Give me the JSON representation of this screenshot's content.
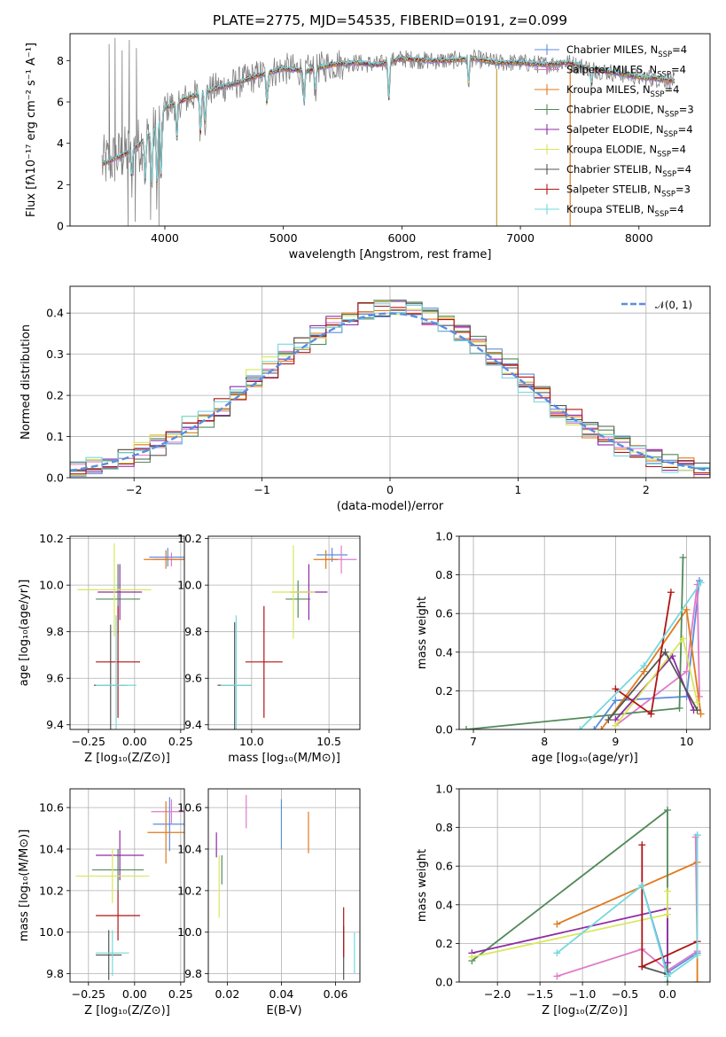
{
  "colors": {
    "chabrier_miles": "#5b8ee0",
    "salpeter_miles": "#e07bc8",
    "kroupa_miles": "#e07a1e",
    "chabrier_elodie": "#538a5a",
    "salpeter_elodie": "#8e2ca6",
    "kroupa_elodie": "#d8e85a",
    "chabrier_stelib": "#555555",
    "salpeter_stelib": "#b01515",
    "kroupa_stelib": "#76d8dc",
    "data": "#808080",
    "normal": "#5b8ee0",
    "grid": "#b0b0b0"
  },
  "chart_data": [
    {
      "id": "spectrum",
      "type": "line",
      "title": "PLATE=2775, MJD=54535, FIBERID=0191, z=0.099",
      "xlabel": "wavelength [Angstrom, rest frame]",
      "ylabel": "Flux [fλ10⁻¹⁷ erg cm⁻² s⁻¹ A⁻¹]",
      "xlim": [
        3200,
        8600
      ],
      "ylim": [
        0,
        9.3
      ],
      "xticks": [
        4000,
        5000,
        6000,
        7000,
        8000
      ],
      "yticks": [
        0,
        2,
        4,
        6,
        8
      ],
      "grid": false,
      "legend_position": "top-right",
      "legend": [
        {
          "label": "Chabrier MILES, N",
          "sub": "SSP",
          "suffix": "=4",
          "color": "#5b8ee0"
        },
        {
          "label": "Salpeter MILES, N",
          "sub": "SSP",
          "suffix": "=4",
          "color": "#e07bc8"
        },
        {
          "label": "Kroupa MILES, N",
          "sub": "SSP",
          "suffix": "=4",
          "color": "#e07a1e"
        },
        {
          "label": "Chabrier ELODIE, N",
          "sub": "SSP",
          "suffix": "=3",
          "color": "#538a5a"
        },
        {
          "label": "Salpeter ELODIE, N",
          "sub": "SSP",
          "suffix": "=4",
          "color": "#8e2ca6"
        },
        {
          "label": "Kroupa ELODIE, N",
          "sub": "SSP",
          "suffix": "=4",
          "color": "#d8e85a"
        },
        {
          "label": "Chabrier STELIB, N",
          "sub": "SSP",
          "suffix": "=4",
          "color": "#555555"
        },
        {
          "label": "Salpeter STELIB, N",
          "sub": "SSP",
          "suffix": "=3",
          "color": "#b01515"
        },
        {
          "label": "Kroupa STELIB, N",
          "sub": "SSP",
          "suffix": "=4",
          "color": "#76d8dc"
        }
      ],
      "continuum": [
        [
          3470,
          3.0
        ],
        [
          3600,
          3.3
        ],
        [
          3700,
          3.6
        ],
        [
          3800,
          4.0
        ],
        [
          3900,
          4.6
        ],
        [
          4000,
          5.7
        ],
        [
          4200,
          6.2
        ],
        [
          4400,
          6.6
        ],
        [
          4600,
          6.9
        ],
        [
          4800,
          7.3
        ],
        [
          5000,
          7.6
        ],
        [
          5200,
          7.5
        ],
        [
          5400,
          7.8
        ],
        [
          5600,
          7.9
        ],
        [
          5800,
          7.8
        ],
        [
          6000,
          8.1
        ],
        [
          6200,
          8.0
        ],
        [
          6400,
          8.0
        ],
        [
          6600,
          8.1
        ],
        [
          6800,
          7.9
        ],
        [
          7000,
          7.9
        ],
        [
          7200,
          7.8
        ],
        [
          7400,
          7.9
        ],
        [
          7600,
          7.6
        ],
        [
          7800,
          7.4
        ],
        [
          8000,
          7.2
        ],
        [
          8200,
          7.1
        ],
        [
          8300,
          7.0
        ]
      ],
      "absorption_lines": [
        [
          3720,
          1.3
        ],
        [
          3835,
          2.0
        ],
        [
          3890,
          2.6
        ],
        [
          3934,
          3.0
        ],
        [
          3968,
          3.0
        ],
        [
          4101,
          1.8
        ],
        [
          4300,
          2.0
        ],
        [
          4340,
          1.5
        ],
        [
          4861,
          1.5
        ],
        [
          5175,
          1.6
        ],
        [
          5270,
          1.1
        ],
        [
          5890,
          1.8
        ],
        [
          6563,
          1.2
        ],
        [
          7600,
          0.8
        ]
      ],
      "masked_lines": [
        6800,
        7420
      ],
      "data_spikes": [
        [
          3530,
          8.8
        ],
        [
          3580,
          9.1
        ],
        [
          3640,
          8.5
        ],
        [
          3700,
          9.0
        ],
        [
          3760,
          8.6
        ],
        [
          3690,
          0.0
        ],
        [
          3750,
          0.2
        ],
        [
          3880,
          0.3
        ],
        [
          3950,
          0.0
        ]
      ]
    },
    {
      "id": "residual_hist",
      "type": "line",
      "xlabel": "(data-model)/error",
      "ylabel": "Normed distribution",
      "xlim": [
        -2.5,
        2.5
      ],
      "ylim": [
        0,
        0.465
      ],
      "xticks": [
        -2,
        -1,
        0,
        1,
        2
      ],
      "yticks": [
        0.0,
        0.1,
        0.2,
        0.3,
        0.4
      ],
      "grid": true,
      "legend_position": "top-right",
      "legend": [
        {
          "label": "𝒩(0, 1)",
          "color": "#5b8ee0",
          "dashed": true
        }
      ],
      "bin_width": 0.125,
      "curve": "normal pdf, mean 0, sigma 1"
    },
    {
      "id": "age_vs_Z",
      "type": "scatter",
      "xlabel": "Z [log₁₀(Z/Z⊙)]",
      "ylabel": "age  [log₁₀(age/yr)]",
      "xlim": [
        -0.35,
        0.27
      ],
      "ylim": [
        9.38,
        10.21
      ],
      "xticks": [
        -0.25,
        0.0,
        0.25
      ],
      "yticks": [
        9.4,
        9.6,
        9.8,
        10.0,
        10.2
      ],
      "grid": true,
      "points": [
        {
          "series": "chabrier_miles",
          "x": 0.18,
          "y": 10.12,
          "xerr": 0.1,
          "yerr": 0.04
        },
        {
          "series": "salpeter_miles",
          "x": 0.2,
          "y": 10.11,
          "xerr": 0.1,
          "yerr": 0.03
        },
        {
          "series": "kroupa_miles",
          "x": 0.17,
          "y": 10.11,
          "xerr": 0.12,
          "yerr": 0.04
        },
        {
          "series": "chabrier_elodie",
          "x": -0.09,
          "y": 9.94,
          "xerr": 0.12,
          "yerr": 0.15
        },
        {
          "series": "salpeter_elodie",
          "x": -0.08,
          "y": 9.97,
          "xerr": 0.12,
          "yerr": 0.12
        },
        {
          "series": "kroupa_elodie",
          "x": -0.11,
          "y": 9.98,
          "xerr": 0.2,
          "yerr": 0.2
        },
        {
          "series": "chabrier_stelib",
          "x": -0.13,
          "y": 9.57,
          "xerr": 0.09,
          "yerr": 0.26
        },
        {
          "series": "salpeter_stelib",
          "x": -0.09,
          "y": 9.67,
          "xerr": 0.12,
          "yerr": 0.24
        },
        {
          "series": "kroupa_stelib",
          "x": -0.1,
          "y": 9.57,
          "xerr": 0.11,
          "yerr": 0.3
        }
      ]
    },
    {
      "id": "age_vs_mass",
      "type": "scatter",
      "xlabel": "mass [log₁₀(M/M⊙)]",
      "ylabel": "",
      "xlim": [
        9.72,
        10.7
      ],
      "ylim": [
        9.38,
        10.21
      ],
      "xticks": [
        10.0,
        10.5
      ],
      "yticks": [
        9.4,
        9.6,
        9.8,
        10.0,
        10.2
      ],
      "grid": true,
      "points": [
        {
          "series": "chabrier_miles",
          "x": 10.52,
          "y": 10.13,
          "xerr": 0.1,
          "yerr": 0.03
        },
        {
          "series": "salpeter_miles",
          "x": 10.58,
          "y": 10.11,
          "xerr": 0.1,
          "yerr": 0.06
        },
        {
          "series": "kroupa_miles",
          "x": 10.48,
          "y": 10.11,
          "xerr": 0.08,
          "yerr": 0.04
        },
        {
          "series": "chabrier_elodie",
          "x": 10.3,
          "y": 9.94,
          "xerr": 0.08,
          "yerr": 0.08
        },
        {
          "series": "salpeter_elodie",
          "x": 10.37,
          "y": 9.97,
          "xerr": 0.12,
          "yerr": 0.12
        },
        {
          "series": "kroupa_elodie",
          "x": 10.27,
          "y": 9.97,
          "xerr": 0.14,
          "yerr": 0.2
        },
        {
          "series": "chabrier_stelib",
          "x": 9.89,
          "y": 9.57,
          "xerr": 0.11,
          "yerr": 0.27
        },
        {
          "series": "salpeter_stelib",
          "x": 10.08,
          "y": 9.67,
          "xerr": 0.12,
          "yerr": 0.24
        },
        {
          "series": "kroupa_stelib",
          "x": 9.9,
          "y": 9.57,
          "xerr": 0.1,
          "yerr": 0.3
        }
      ]
    },
    {
      "id": "weight_vs_age",
      "type": "line",
      "xlabel": "age  [log₁₀(age/yr)]",
      "ylabel": "mass weight",
      "xlim": [
        6.8,
        10.33
      ],
      "ylim": [
        0,
        1.0
      ],
      "xticks": [
        7,
        8,
        9,
        10
      ],
      "yticks": [
        0.0,
        0.2,
        0.4,
        0.6,
        0.8,
        1.0
      ],
      "grid": true,
      "series": [
        {
          "key": "chabrier_miles",
          "x": [
            8.7,
            9.0,
            10.0,
            10.18
          ],
          "y": [
            0.0,
            0.15,
            0.17,
            0.77
          ]
        },
        {
          "key": "salpeter_miles",
          "x": [
            9.0,
            10.0,
            10.15,
            10.18
          ],
          "y": [
            0.02,
            0.3,
            0.75,
            0.17
          ]
        },
        {
          "key": "kroupa_miles",
          "x": [
            8.8,
            9.4,
            10.0,
            10.2
          ],
          "y": [
            0.0,
            0.3,
            0.62,
            0.08
          ]
        },
        {
          "key": "chabrier_elodie",
          "x": [
            6.9,
            9.9,
            9.95
          ],
          "y": [
            0.0,
            0.11,
            0.89
          ]
        },
        {
          "key": "salpeter_elodie",
          "x": [
            9.0,
            9.8,
            10.1
          ],
          "y": [
            0.05,
            0.38,
            0.1
          ]
        },
        {
          "key": "kroupa_elodie",
          "x": [
            9.0,
            9.95,
            10.15
          ],
          "y": [
            0.02,
            0.47,
            0.14
          ]
        },
        {
          "key": "chabrier_stelib",
          "x": [
            8.9,
            9.7,
            10.15
          ],
          "y": [
            0.05,
            0.4,
            0.1
          ]
        },
        {
          "key": "salpeter_stelib",
          "x": [
            9.0,
            9.5,
            9.78
          ],
          "y": [
            0.21,
            0.08,
            0.71
          ]
        },
        {
          "key": "kroupa_stelib",
          "x": [
            8.5,
            9.4,
            10.2
          ],
          "y": [
            0.0,
            0.33,
            0.76
          ]
        }
      ]
    },
    {
      "id": "mass_vs_Z",
      "type": "scatter",
      "xlabel": "Z [log₁₀(Z/Z⊙)]",
      "ylabel": "mass [log₁₀(M/M⊙)]",
      "xlim": [
        -0.35,
        0.27
      ],
      "ylim": [
        9.76,
        10.69
      ],
      "xticks": [
        -0.25,
        0.0,
        0.25
      ],
      "yticks": [
        9.8,
        10.0,
        10.2,
        10.4,
        10.6
      ],
      "grid": true,
      "points": [
        {
          "series": "chabrier_miles",
          "x": 0.19,
          "y": 10.52,
          "xerr": 0.09,
          "yerr": 0.13
        },
        {
          "series": "salpeter_miles",
          "x": 0.2,
          "y": 10.58,
          "xerr": 0.11,
          "yerr": 0.06
        },
        {
          "series": "kroupa_miles",
          "x": 0.17,
          "y": 10.48,
          "xerr": 0.1,
          "yerr": 0.15
        },
        {
          "series": "chabrier_elodie",
          "x": -0.09,
          "y": 10.3,
          "xerr": 0.14,
          "yerr": 0.1
        },
        {
          "series": "salpeter_elodie",
          "x": -0.08,
          "y": 10.37,
          "xerr": 0.13,
          "yerr": 0.12
        },
        {
          "series": "kroupa_elodie",
          "x": -0.12,
          "y": 10.27,
          "xerr": 0.2,
          "yerr": 0.13
        },
        {
          "series": "chabrier_stelib",
          "x": -0.14,
          "y": 9.89,
          "xerr": 0.07,
          "yerr": 0.12
        },
        {
          "series": "salpeter_stelib",
          "x": -0.09,
          "y": 10.08,
          "xerr": 0.12,
          "yerr": 0.12
        },
        {
          "series": "kroupa_stelib",
          "x": -0.12,
          "y": 9.9,
          "xerr": 0.09,
          "yerr": 0.11
        }
      ]
    },
    {
      "id": "mass_vs_ebv",
      "type": "scatter",
      "xlabel": "E(B-V)",
      "ylabel": "",
      "xlim": [
        0.013,
        0.069
      ],
      "ylim": [
        9.76,
        10.69
      ],
      "xticks": [
        0.02,
        0.04,
        0.06
      ],
      "yticks": [
        9.8,
        10.0,
        10.2,
        10.4,
        10.6
      ],
      "grid": true,
      "points": [
        {
          "series": "chabrier_miles",
          "x": 0.04,
          "y": 10.52,
          "xerr": 0.0,
          "yerr": 0.12
        },
        {
          "series": "salpeter_miles",
          "x": 0.027,
          "y": 10.58,
          "xerr": 0.0,
          "yerr": 0.08
        },
        {
          "series": "kroupa_miles",
          "x": 0.05,
          "y": 10.48,
          "xerr": 0.0,
          "yerr": 0.1
        },
        {
          "series": "chabrier_elodie",
          "x": 0.018,
          "y": 10.3,
          "xerr": 0.0,
          "yerr": 0.07
        },
        {
          "series": "salpeter_elodie",
          "x": 0.016,
          "y": 10.42,
          "xerr": 0.0,
          "yerr": 0.06
        },
        {
          "series": "kroupa_elodie",
          "x": 0.017,
          "y": 10.22,
          "xerr": 0.0,
          "yerr": 0.15
        },
        {
          "series": "chabrier_stelib",
          "x": 0.063,
          "y": 9.9,
          "xerr": 0.0,
          "yerr": 0.13
        },
        {
          "series": "salpeter_stelib",
          "x": 0.063,
          "y": 10.0,
          "xerr": 0.0,
          "yerr": 0.12
        },
        {
          "series": "kroupa_stelib",
          "x": 0.067,
          "y": 9.9,
          "xerr": 0.0,
          "yerr": 0.1
        }
      ]
    },
    {
      "id": "weight_vs_Z",
      "type": "line",
      "xlabel": "Z [log₁₀(Z/Z⊙)]",
      "ylabel": "mass weight",
      "xlim": [
        -2.45,
        0.5
      ],
      "ylim": [
        0,
        1.0
      ],
      "xticks": [
        -2.0,
        -1.5,
        -1.0,
        -0.5,
        0.0
      ],
      "yticks": [
        0.0,
        0.2,
        0.4,
        0.6,
        0.8,
        1.0
      ],
      "grid": true,
      "series": [
        {
          "key": "chabrier_miles",
          "x": [
            -0.3,
            0.0,
            0.35,
            0.35
          ],
          "y": [
            0.5,
            0.05,
            0.15,
            0.76
          ]
        },
        {
          "key": "salpeter_miles",
          "x": [
            -1.3,
            -0.3,
            0.0,
            0.35,
            0.33
          ],
          "y": [
            0.03,
            0.17,
            0.06,
            0.16,
            0.75
          ]
        },
        {
          "key": "kroupa_miles",
          "x": [
            -1.3,
            0.35,
            0.35
          ],
          "y": [
            0.3,
            0.62,
            0.0
          ]
        },
        {
          "key": "chabrier_elodie",
          "x": [
            -2.3,
            0.0,
            0.0
          ],
          "y": [
            0.11,
            0.89,
            0.0
          ]
        },
        {
          "key": "salpeter_elodie",
          "x": [
            -2.3,
            0.0,
            0.0
          ],
          "y": [
            0.15,
            0.38,
            0.1
          ]
        },
        {
          "key": "kroupa_elodie",
          "x": [
            -2.3,
            0.0,
            0.0
          ],
          "y": [
            0.13,
            0.35,
            0.47
          ]
        },
        {
          "key": "chabrier_stelib",
          "x": [
            -0.3,
            0.0
          ],
          "y": [
            0.08,
            0.04
          ]
        },
        {
          "key": "salpeter_stelib",
          "x": [
            -0.3,
            -0.3,
            0.35
          ],
          "y": [
            0.71,
            0.08,
            0.21
          ]
        },
        {
          "key": "kroupa_stelib",
          "x": [
            -1.3,
            -0.3,
            0.0,
            0.35,
            0.35
          ],
          "y": [
            0.15,
            0.5,
            0.03,
            0.14,
            0.76
          ]
        }
      ]
    }
  ]
}
